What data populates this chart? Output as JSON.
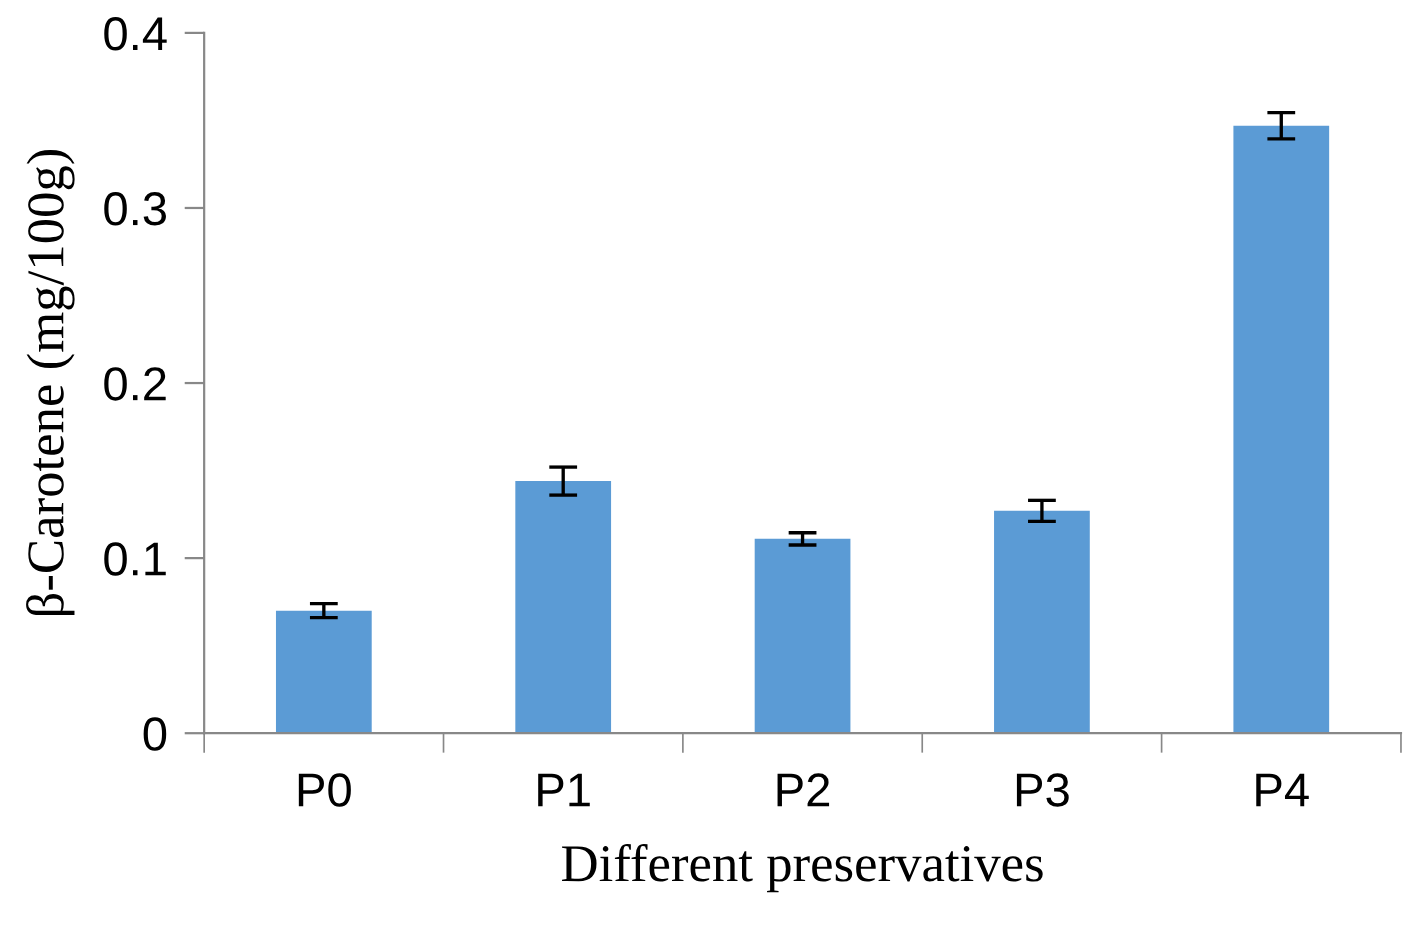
{
  "chart_data": {
    "type": "bar",
    "xlabel": "Different preservatives",
    "ylabel": "β-Carotene (mg/100g)",
    "categories": [
      "P0",
      "P1",
      "P2",
      "P3",
      "P4"
    ],
    "values": [
      0.07,
      0.144,
      0.111,
      0.127,
      0.347
    ],
    "errors": [
      0.004,
      0.008,
      0.0035,
      0.006,
      0.0075
    ],
    "color": "#5b9bd5",
    "ylim": [
      0,
      0.4
    ],
    "yticks": [
      {
        "value": 0,
        "label": "0"
      },
      0.1,
      0.2,
      0.3,
      0.4
    ],
    "grid": false,
    "legend": false
  }
}
